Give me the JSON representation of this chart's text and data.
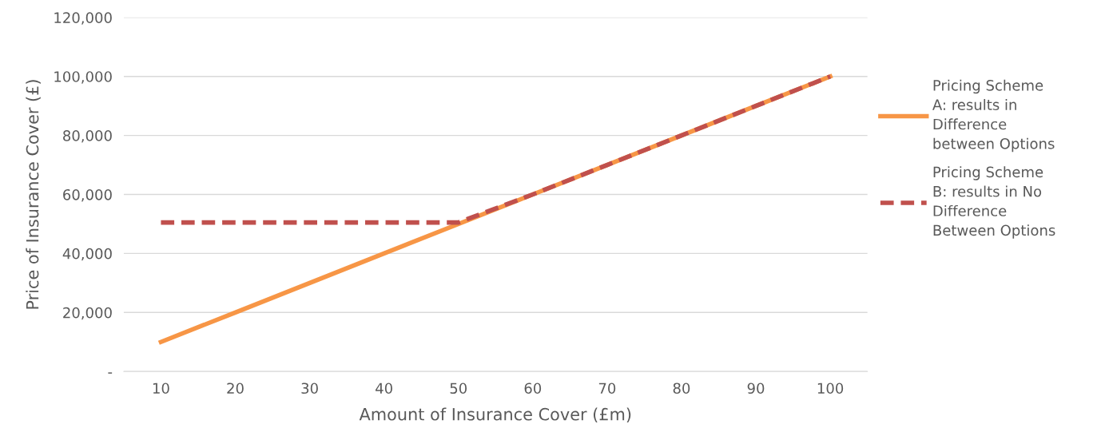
{
  "chart_data": {
    "type": "line",
    "xlabel": "Amount of Insurance Cover (£m)",
    "ylabel": "Price of Insurance Cover (£)",
    "categories": [
      "10",
      "20",
      "30",
      "40",
      "50",
      "60",
      "70",
      "80",
      "90",
      "100"
    ],
    "series": [
      {
        "name": "Pricing Scheme A: results in Difference between Options",
        "color": "#f79646",
        "line_style": "solid",
        "values": [
          10000,
          20000,
          30000,
          40000,
          50000,
          60000,
          70000,
          80000,
          90000,
          100000
        ]
      },
      {
        "name": "Pricing Scheme B: results in No Difference Between Options",
        "color": "#c0504d",
        "line_style": "dashed",
        "values": [
          50500,
          50500,
          50500,
          50500,
          50500,
          60000,
          70000,
          80000,
          90000,
          100000
        ]
      }
    ],
    "ylim": [
      0,
      120000
    ],
    "yticks": [
      {
        "value": 0,
        "label": "-"
      },
      {
        "value": 20000,
        "label": "20,000"
      },
      {
        "value": 40000,
        "label": "40,000"
      },
      {
        "value": 60000,
        "label": "60,000"
      },
      {
        "value": 80000,
        "label": "80,000"
      },
      {
        "value": 100000,
        "label": "100,000"
      },
      {
        "value": 120000,
        "label": "120,000"
      }
    ],
    "grid": "y",
    "legend": "right",
    "marker": "none"
  }
}
